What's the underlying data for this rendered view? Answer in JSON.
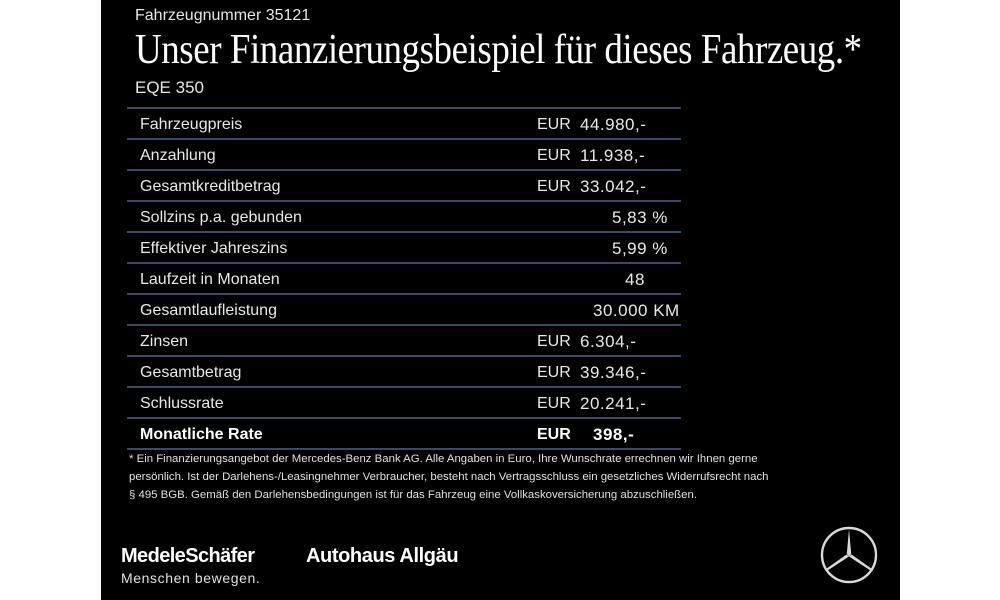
{
  "header": {
    "vehicle_number": "Fahrzeugnummer 35121",
    "headline": "Unser Finanzierungsbeispiel für dieses Fahrzeug.*",
    "model": "EQE 350"
  },
  "finance_table": {
    "rows": [
      {
        "label": "Fahrzeugpreis",
        "currency": "EUR",
        "amount": "44.980,-"
      },
      {
        "label": "Anzahlung",
        "currency": "EUR",
        "amount": "11.938,-"
      },
      {
        "label": "Gesamtkreditbetrag",
        "currency": "EUR",
        "amount": "33.042,-"
      },
      {
        "label": "Sollzins p.a. gebunden",
        "currency": "",
        "amount": "5,83 %"
      },
      {
        "label": "Effektiver Jahreszins",
        "currency": "",
        "amount": "5,99 %"
      },
      {
        "label": "Laufzeit in Monaten",
        "currency": "",
        "amount": "48"
      },
      {
        "label": "Gesamtlaufleistung",
        "currency": "",
        "amount": "30.000 KM"
      },
      {
        "label": "Zinsen",
        "currency": "EUR",
        "amount": "6.304,-"
      },
      {
        "label": "Gesamtbetrag",
        "currency": "EUR",
        "amount": "39.346,-"
      },
      {
        "label": "Schlussrate",
        "currency": "EUR",
        "amount": "20.241,-"
      },
      {
        "label": "Monatliche Rate",
        "currency": "EUR",
        "amount": "398,-"
      }
    ]
  },
  "footnote": {
    "line1": "* Ein Finanzierungsangebot der Mercedes-Benz Bank AG. Alle Angaben in Euro, Ihre Wunschrate errechnen wir Ihnen gerne",
    "line2": "persönlich. Ist der Darlehens-/Leasingnehmer Verbraucher, besteht nach Vertragsschluss ein gesetzliches Widerrufsrecht nach",
    "line3": "§ 495 BGB. Gemäß den Darlehensbedingungen ist für das Fahrzeug eine Vollkaskoversicherung abzuschließen."
  },
  "footer": {
    "dealer_brand": "MedeleSchäfer",
    "dealer_tagline": "Menschen bewegen.",
    "second_brand": "Autohaus Allgäu",
    "logo_icon": "mercedes-star-icon"
  },
  "colors": {
    "background": "#000000",
    "text": "#ffffff",
    "row_divider": "#3b4a66"
  }
}
